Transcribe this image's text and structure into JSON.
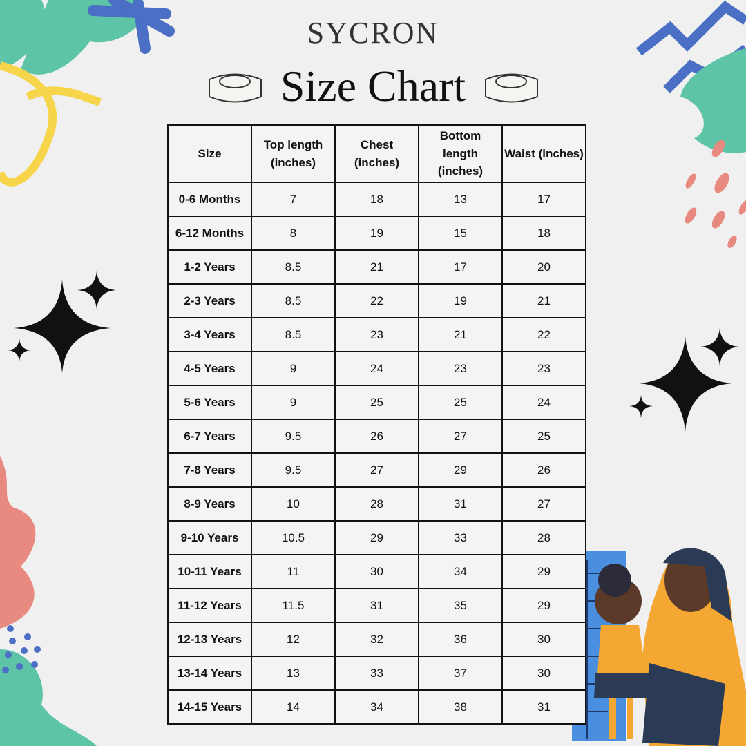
{
  "header": {
    "brand": "SYCRON",
    "title": "Size Chart"
  },
  "table": {
    "columns": [
      "Size",
      "Top length (inches)",
      "Chest (inches)",
      "Bottom length (inches)",
      "Waist (inches)"
    ],
    "rows": [
      [
        "0-6 Months",
        "7",
        "18",
        "13",
        "17"
      ],
      [
        "6-12 Months",
        "8",
        "19",
        "15",
        "18"
      ],
      [
        "1-2 Years",
        "8.5",
        "21",
        "17",
        "20"
      ],
      [
        "2-3 Years",
        "8.5",
        "22",
        "19",
        "21"
      ],
      [
        "3-4 Years",
        "8.5",
        "23",
        "21",
        "22"
      ],
      [
        "4-5 Years",
        "9",
        "24",
        "23",
        "23"
      ],
      [
        "5-6 Years",
        "9",
        "25",
        "25",
        "24"
      ],
      [
        "6-7 Years",
        "9.5",
        "26",
        "27",
        "25"
      ],
      [
        "7-8 Years",
        "9.5",
        "27",
        "29",
        "26"
      ],
      [
        "8-9 Years",
        "10",
        "28",
        "31",
        "27"
      ],
      [
        "9-10 Years",
        "10.5",
        "29",
        "33",
        "28"
      ],
      [
        "10-11 Years",
        "11",
        "30",
        "34",
        "29"
      ],
      [
        "11-12 Years",
        "11.5",
        "31",
        "35",
        "29"
      ],
      [
        "12-13 Years",
        "12",
        "32",
        "36",
        "30"
      ],
      [
        "13-14 Years",
        "13",
        "33",
        "37",
        "30"
      ],
      [
        "14-15 Years",
        "14",
        "34",
        "38",
        "31"
      ]
    ]
  }
}
